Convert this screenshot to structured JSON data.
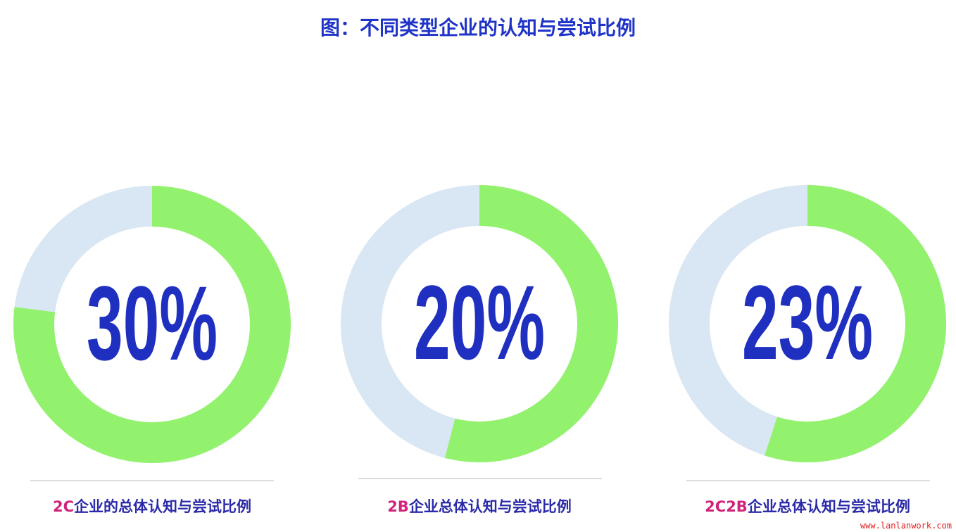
{
  "title": "图：不同类型企业的认知与尝试比例",
  "colors": {
    "filled": "#93f26d",
    "remaining": "#d9e6f3",
    "value_text": "#1f2fc0",
    "label_prefix": "#d0247a",
    "label_text": "#2a2aa8"
  },
  "chart_data": [
    {
      "type": "pie",
      "variant": "donut",
      "center_label": "30%",
      "value": 30,
      "arc_filled_fraction": 0.77,
      "label_prefix": "2C",
      "label_rest": "企业的总体认知与尝试比例"
    },
    {
      "type": "pie",
      "variant": "donut",
      "center_label": "20%",
      "value": 20,
      "arc_filled_fraction": 0.54,
      "label_prefix": "2B",
      "label_rest": "企业总体认知与尝试比例"
    },
    {
      "type": "pie",
      "variant": "donut",
      "center_label": "23%",
      "value": 23,
      "arc_filled_fraction": 0.55,
      "label_prefix": "2C2B",
      "label_rest": "企业总体认知与尝试比例"
    }
  ],
  "watermark": "www.lanlanwork.com"
}
